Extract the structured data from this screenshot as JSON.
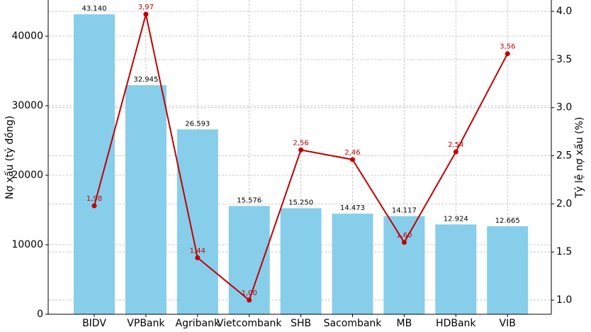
{
  "chart_data": {
    "type": "bar-line",
    "categories": [
      "BIDV",
      "VPBank",
      "Agribank",
      "Vietcombank",
      "SHB",
      "Sacombank",
      "MB",
      "HDBank",
      "VIB"
    ],
    "y_label": "Nợ xấu (tỷ đồng)",
    "y2_label": "Tỷ lệ nợ xấu (%)",
    "series": [
      {
        "name": "Nợ xấu",
        "type": "bar",
        "color": "#87ceeb",
        "values": [
          43140,
          32945,
          26593,
          15576,
          15250,
          14473,
          14117,
          12924,
          12665
        ],
        "value_labels": [
          "43.140",
          "32.945",
          "26.593",
          "15.576",
          "15.250",
          "14.473",
          "14.117",
          "12.924",
          "12.665"
        ]
      },
      {
        "name": "Tỷ lệ nợ xấu",
        "type": "line",
        "axis": "y2",
        "color": "#c00000",
        "values": [
          1.98,
          3.97,
          1.44,
          1.0,
          2.56,
          2.46,
          1.6,
          2.54,
          3.56
        ],
        "value_labels": [
          "1,98",
          "3,97",
          "1,44",
          "1,00",
          "2,56",
          "2,46",
          "1,60",
          "2,54",
          "3,56"
        ]
      }
    ],
    "ylim": [
      0,
      45200
    ],
    "yticks": [
      0,
      10000,
      20000,
      30000,
      40000
    ],
    "y2lim": [
      0.853,
      4.118
    ],
    "y2ticks": [
      {
        "value": 1,
        "label": "1.0"
      },
      {
        "value": 1.5,
        "label": "1.5"
      },
      {
        "value": 2,
        "label": "2.0"
      },
      {
        "value": 2.5,
        "label": "2.5"
      },
      {
        "value": 3,
        "label": "3.0"
      },
      {
        "value": 3.5,
        "label": "3.5"
      },
      {
        "value": 4,
        "label": "4.0"
      }
    ],
    "grid": true
  }
}
